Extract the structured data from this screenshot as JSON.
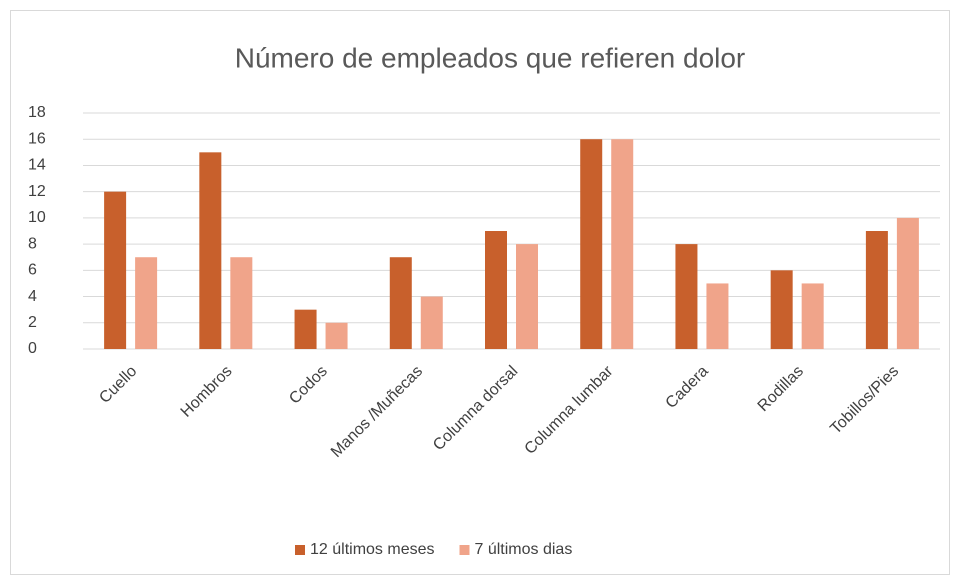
{
  "chart_data": {
    "type": "bar",
    "title": "Número de empleados que refieren dolor",
    "categories": [
      "Cuello",
      "Hombros",
      "Codos",
      "Manos /Muñecas",
      "Columna dorsal",
      "Columna lumbar",
      "Cadera",
      "Rodillas",
      "Tobillos/Pies"
    ],
    "series": [
      {
        "name": "12 últimos meses",
        "color": "#C8602C",
        "values": [
          12,
          15,
          3,
          7,
          9,
          16,
          8,
          6,
          9
        ]
      },
      {
        "name": "7 últimos dias",
        "color": "#F0A48A",
        "values": [
          7,
          7,
          2,
          4,
          8,
          16,
          5,
          5,
          10
        ]
      }
    ],
    "ylim": [
      0,
      18
    ],
    "yticks": [
      0,
      2,
      4,
      6,
      8,
      10,
      12,
      14,
      16,
      18
    ],
    "grid": true,
    "legend": "bottom"
  }
}
